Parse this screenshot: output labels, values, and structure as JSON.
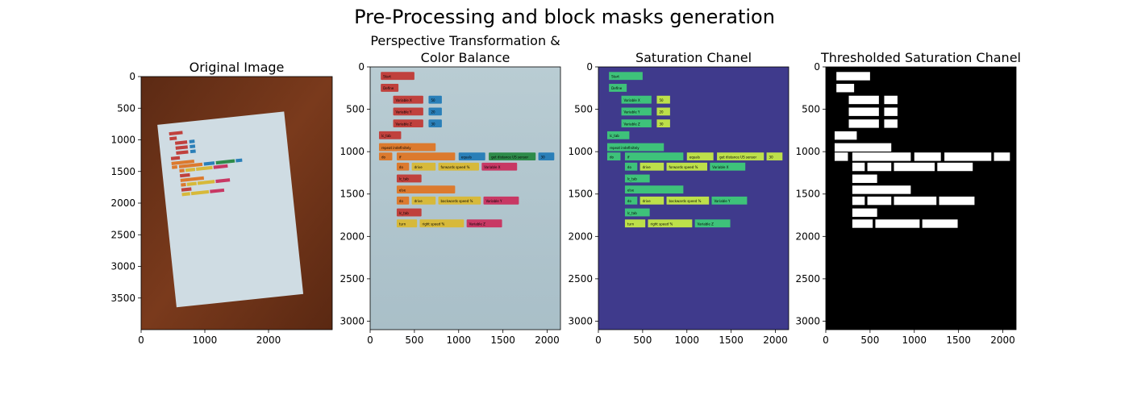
{
  "suptitle": "Pre-Processing and block masks generation",
  "colors": {
    "wood": "#6e3218",
    "paper": "#cfdce3",
    "paper_balanced": "#b4c8cf",
    "viridis_bg": "#3f3a8c",
    "viridis_block": "#3ec27a",
    "viridis_bright": "#bde04a",
    "mask_bg": "#000000",
    "mask_block": "#ffffff",
    "block_red": "#c0413d",
    "block_orange": "#dc7a2e",
    "block_blue": "#2a7fb8",
    "block_yellow": "#d7b93a",
    "block_green": "#2e8b4a",
    "block_pink": "#c83864"
  },
  "chart_data": [
    {
      "type": "image",
      "title": "Original Image",
      "xlim": [
        0,
        3000
      ],
      "ylim": [
        4000,
        0
      ],
      "xticks": [
        0,
        1000,
        2000
      ],
      "yticks": [
        0,
        500,
        1000,
        1500,
        2000,
        2500,
        3000,
        3500
      ],
      "content": "photo of coding blocks on white paper over wooden table"
    },
    {
      "type": "image",
      "title": "Perspective Transformation &\nColor Balance",
      "xlim": [
        0,
        2150
      ],
      "ylim": [
        3100,
        0
      ],
      "xticks": [
        0,
        500,
        1000,
        1500,
        2000
      ],
      "yticks": [
        0,
        500,
        1000,
        1500,
        2000,
        2500,
        3000
      ],
      "content": "rectified color-balanced photo of coding blocks"
    },
    {
      "type": "image",
      "title": "Saturation Chanel",
      "xlim": [
        0,
        2150
      ],
      "ylim": [
        3100,
        0
      ],
      "xticks": [
        0,
        500,
        1000,
        1500,
        2000
      ],
      "yticks": [
        0,
        500,
        1000,
        1500,
        2000,
        2500,
        3000
      ],
      "content": "saturation channel in viridis colormap"
    },
    {
      "type": "image",
      "title": "Thresholded Saturation Chanel",
      "xlim": [
        0,
        2150
      ],
      "ylim": [
        3100,
        0
      ],
      "xticks": [
        0,
        500,
        1000,
        1500,
        2000
      ],
      "yticks": [
        0,
        500,
        1000,
        1500,
        2000,
        2500,
        3000
      ],
      "content": "binary mask of blocks"
    }
  ],
  "blocks": [
    {
      "x": 120,
      "y": 60,
      "w": 380,
      "h": 110,
      "c": "block_red",
      "t": "Start"
    },
    {
      "x": 120,
      "y": 200,
      "w": 200,
      "h": 110,
      "c": "block_red",
      "t": "Define"
    },
    {
      "x": 260,
      "y": 340,
      "w": 340,
      "h": 110,
      "c": "block_red",
      "t": "Variable  X"
    },
    {
      "x": 660,
      "y": 340,
      "w": 150,
      "h": 110,
      "c": "block_blue",
      "t": "50"
    },
    {
      "x": 260,
      "y": 480,
      "w": 340,
      "h": 110,
      "c": "block_red",
      "t": "Variable  Y"
    },
    {
      "x": 660,
      "y": 480,
      "w": 150,
      "h": 110,
      "c": "block_blue",
      "t": "20"
    },
    {
      "x": 260,
      "y": 620,
      "w": 340,
      "h": 110,
      "c": "block_red",
      "t": "Variable  Z"
    },
    {
      "x": 660,
      "y": 620,
      "w": 150,
      "h": 110,
      "c": "block_blue",
      "t": "30"
    },
    {
      "x": 100,
      "y": 760,
      "w": 250,
      "h": 110,
      "c": "block_red",
      "t": "lc_tab"
    },
    {
      "x": 100,
      "y": 900,
      "w": 640,
      "h": 110,
      "c": "block_orange",
      "t": "repeat indefinitely"
    },
    {
      "x": 100,
      "y": 1010,
      "w": 150,
      "h": 110,
      "c": "block_orange",
      "t": "do"
    },
    {
      "x": 300,
      "y": 1010,
      "w": 660,
      "h": 110,
      "c": "block_orange",
      "t": "if"
    },
    {
      "x": 1000,
      "y": 1010,
      "w": 300,
      "h": 110,
      "c": "block_blue",
      "t": "equals"
    },
    {
      "x": 1340,
      "y": 1010,
      "w": 530,
      "h": 110,
      "c": "block_green",
      "t": "get distance US sensor"
    },
    {
      "x": 1900,
      "y": 1010,
      "w": 180,
      "h": 110,
      "c": "block_blue",
      "t": "30"
    },
    {
      "x": 300,
      "y": 1130,
      "w": 140,
      "h": 110,
      "c": "block_orange",
      "t": "do"
    },
    {
      "x": 470,
      "y": 1130,
      "w": 270,
      "h": 110,
      "c": "block_yellow",
      "t": "drive"
    },
    {
      "x": 770,
      "y": 1130,
      "w": 460,
      "h": 110,
      "c": "block_yellow",
      "t": "forwards speed %"
    },
    {
      "x": 1260,
      "y": 1130,
      "w": 400,
      "h": 110,
      "c": "block_pink",
      "t": "Variable X"
    },
    {
      "x": 300,
      "y": 1270,
      "w": 280,
      "h": 110,
      "c": "block_red",
      "t": "lc_tab"
    },
    {
      "x": 300,
      "y": 1400,
      "w": 660,
      "h": 110,
      "c": "block_orange",
      "t": "else"
    },
    {
      "x": 300,
      "y": 1530,
      "w": 140,
      "h": 110,
      "c": "block_orange",
      "t": "do"
    },
    {
      "x": 470,
      "y": 1530,
      "w": 270,
      "h": 110,
      "c": "block_yellow",
      "t": "drive"
    },
    {
      "x": 770,
      "y": 1530,
      "w": 480,
      "h": 110,
      "c": "block_yellow",
      "t": "backwards speed %"
    },
    {
      "x": 1280,
      "y": 1530,
      "w": 400,
      "h": 110,
      "c": "block_pink",
      "t": "Variable Y"
    },
    {
      "x": 300,
      "y": 1670,
      "w": 280,
      "h": 110,
      "c": "block_red",
      "t": "lc_tab"
    },
    {
      "x": 300,
      "y": 1800,
      "w": 230,
      "h": 110,
      "c": "block_yellow",
      "t": "turn"
    },
    {
      "x": 560,
      "y": 1800,
      "w": 500,
      "h": 110,
      "c": "block_yellow",
      "t": "right speed %"
    },
    {
      "x": 1090,
      "y": 1800,
      "w": 400,
      "h": 110,
      "c": "block_pink",
      "t": "Variable Z"
    }
  ]
}
